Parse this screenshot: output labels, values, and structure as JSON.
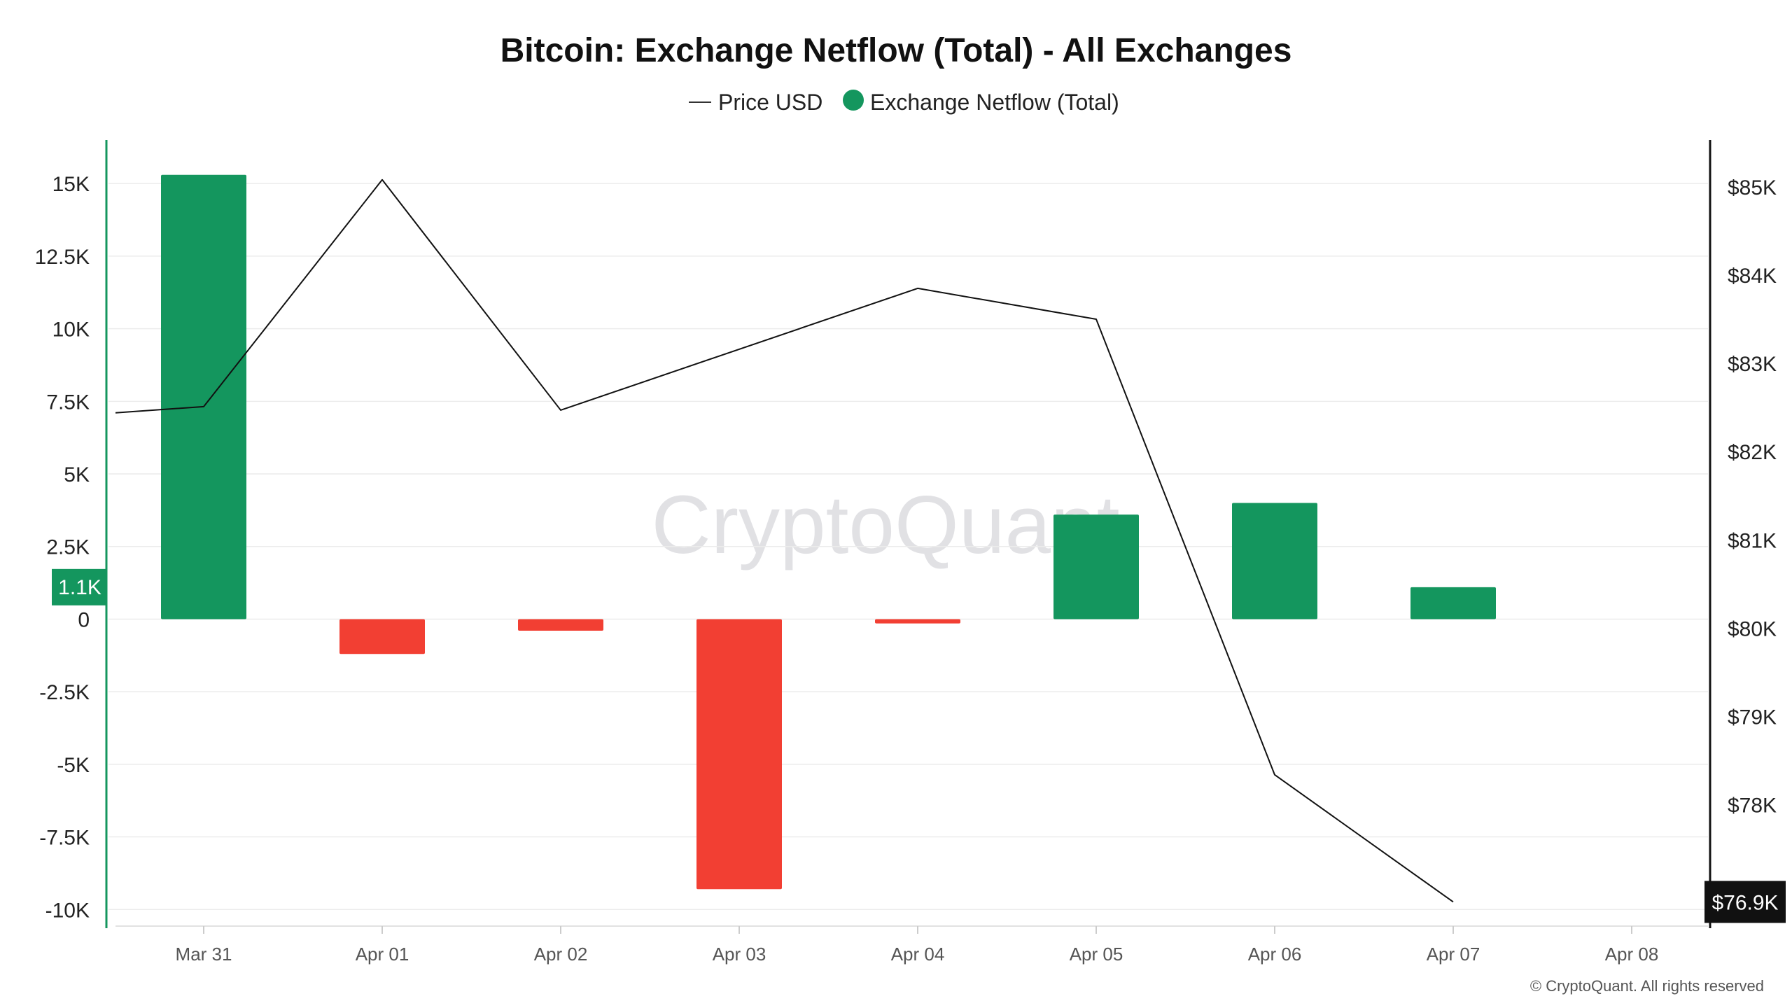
{
  "colors": {
    "positive": "#14965e",
    "negative": "#f23f33",
    "price_line": "#111111",
    "grid": "#ececec",
    "left_axis": "#14965e",
    "right_axis": "#111111",
    "price_badge_bg": "#111111",
    "netflow_badge_bg": "#14965e"
  },
  "chart_data": {
    "type": "bar",
    "title": "Bitcoin: Exchange Netflow (Total) - All Exchanges",
    "legend": {
      "placement": "top-center",
      "items": [
        {
          "label": "Price USD",
          "marker": "line"
        },
        {
          "label": "Exchange Netflow (Total)",
          "marker": "dot"
        }
      ]
    },
    "x": [
      "Mar 31",
      "Apr 01",
      "Apr 02",
      "Apr 03",
      "Apr 04",
      "Apr 05",
      "Apr 06",
      "Apr 07",
      "Apr 08"
    ],
    "series": [
      {
        "name": "Exchange Netflow (Total)",
        "type": "bar",
        "axis": "left",
        "values": [
          15300,
          -1200,
          -400,
          -9300,
          -150,
          3600,
          4000,
          1100,
          null
        ]
      },
      {
        "name": "Price USD",
        "type": "line",
        "axis": "right",
        "values": [
          82510,
          85080,
          82470,
          null,
          83850,
          83500,
          78340,
          76900,
          null
        ],
        "start_value": 82440
      }
    ],
    "left_axis": {
      "ylim": [
        -10500,
        16500
      ],
      "ticks": [
        15000,
        12500,
        10000,
        7500,
        5000,
        2500,
        0,
        -2500,
        -5000,
        -7500,
        -10000
      ],
      "tick_labels": [
        "15K",
        "12.5K",
        "10K",
        "7.5K",
        "5K",
        "2.5K",
        "0",
        "-2.5K",
        "-5K",
        "-7.5K",
        "-10K"
      ]
    },
    "right_axis": {
      "ylim": [
        76650,
        85530
      ],
      "ticks": [
        85000,
        84000,
        83000,
        82000,
        81000,
        80000,
        79000,
        78000
      ],
      "tick_labels": [
        "$85K",
        "$84K",
        "$83K",
        "$82K",
        "$81K",
        "$80K",
        "$79K",
        "$78K"
      ]
    },
    "last_value_badges": {
      "netflow": "1.1K",
      "price": "$76.9K"
    },
    "grid": true
  },
  "watermark": "CryptoQuant",
  "copyright": "© CryptoQuant. All rights reserved"
}
